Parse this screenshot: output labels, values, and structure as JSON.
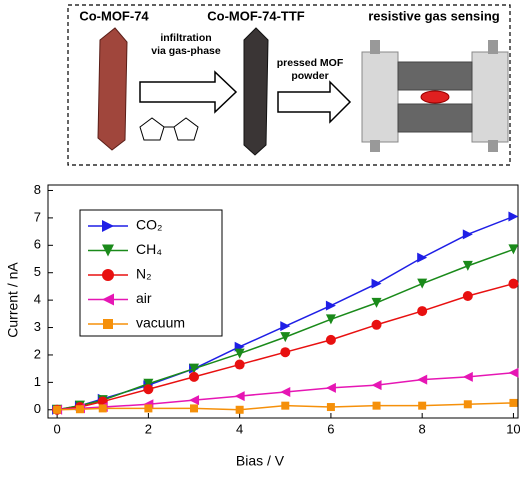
{
  "schematic": {
    "label_left": "Co-MOF-74",
    "arrow1_lines": [
      "infiltration",
      "via gas-phase"
    ],
    "label_middle": "Co-MOF-74-TTF",
    "arrow2_lines": [
      "pressed MOF",
      "powder"
    ],
    "label_right": "resistive gas sensing"
  },
  "chart_data": {
    "type": "line",
    "x_label": "Bias / V",
    "y_label": "Current / nA",
    "x": [
      0,
      0.5,
      1,
      2,
      3,
      4,
      5,
      6,
      7,
      8,
      9,
      10
    ],
    "series": [
      {
        "name": "CO₂",
        "color": "#1f1fe6",
        "marker": "triangle-right",
        "values": [
          0,
          0.15,
          0.4,
          0.9,
          1.5,
          2.3,
          3.05,
          3.8,
          4.6,
          5.55,
          6.4,
          7.05
        ]
      },
      {
        "name": "CH₄",
        "color": "#1a8a1a",
        "marker": "triangle-down",
        "values": [
          0,
          0.15,
          0.35,
          0.95,
          1.5,
          2.05,
          2.65,
          3.3,
          3.9,
          4.6,
          5.25,
          5.85
        ]
      },
      {
        "name": "N₂",
        "color": "#e81010",
        "marker": "circle",
        "values": [
          0,
          0.1,
          0.3,
          0.75,
          1.2,
          1.65,
          2.1,
          2.55,
          3.1,
          3.6,
          4.15,
          4.6
        ]
      },
      {
        "name": "air",
        "color": "#e616b4",
        "marker": "triangle-left",
        "values": [
          0,
          0.05,
          0.1,
          0.2,
          0.35,
          0.5,
          0.65,
          0.8,
          0.9,
          1.1,
          1.2,
          1.35
        ]
      },
      {
        "name": "vacuum",
        "color": "#f5900a",
        "marker": "square",
        "values": [
          0,
          0.02,
          0.05,
          0.05,
          0.05,
          0,
          0.15,
          0.1,
          0.15,
          0.15,
          0.2,
          0.25
        ]
      }
    ],
    "xlim": [
      -0.2,
      10.1
    ],
    "ylim": [
      -0.3,
      8.2
    ],
    "xticks": [
      0,
      2,
      4,
      6,
      8,
      10
    ],
    "yticks": [
      0,
      1,
      2,
      3,
      4,
      5,
      6,
      7,
      8
    ],
    "legend": "upper left"
  }
}
